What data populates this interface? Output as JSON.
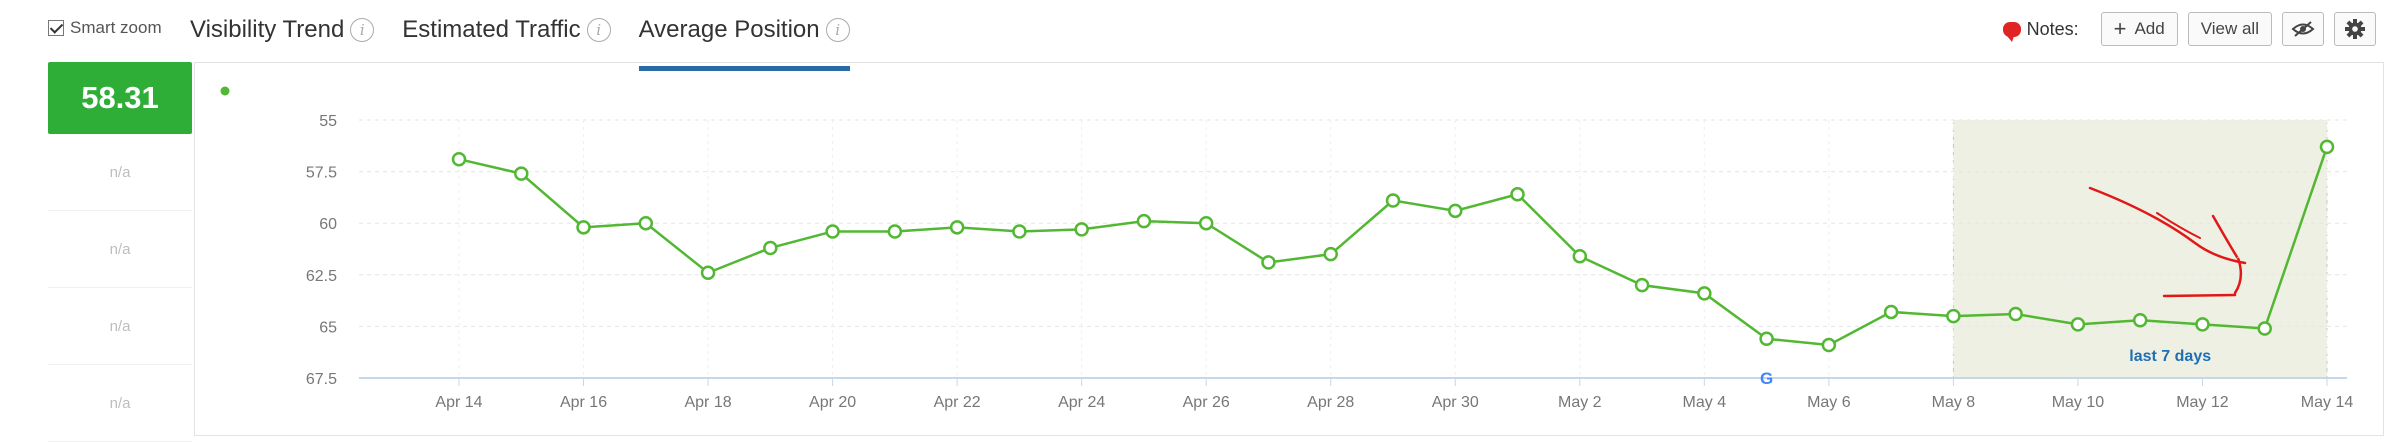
{
  "toolbar": {
    "smart_zoom_label": "Smart zoom",
    "tabs": [
      {
        "label": "Visibility Trend",
        "active": false
      },
      {
        "label": "Estimated Traffic",
        "active": false
      },
      {
        "label": "Average Position",
        "active": true
      }
    ],
    "notes_label": "Notes:",
    "add_label": "Add",
    "view_all_label": "View all"
  },
  "metrics": {
    "current": "58.31",
    "rows": [
      "n/a",
      "n/a",
      "n/a",
      "n/a"
    ]
  },
  "colors": {
    "series": "#52b833",
    "metric_bg": "#2fae37",
    "highlight_bg": "#eef0e3",
    "annotation_text": "#1f6fb4",
    "active_tab": "#2b6aa8",
    "scribble": "#e01818"
  },
  "chart_data": {
    "type": "line",
    "title": "",
    "xlabel": "",
    "ylabel": "",
    "y_inverted": true,
    "ylim": [
      55,
      67.5
    ],
    "yticks": [
      "55",
      "57.5",
      "60",
      "62.5",
      "65",
      "67.5"
    ],
    "ytick_values": [
      55,
      57.5,
      60,
      62.5,
      65,
      67.5
    ],
    "xticks": [
      "Apr 14",
      "Apr 16",
      "Apr 18",
      "Apr 20",
      "Apr 22",
      "Apr 24",
      "Apr 26",
      "Apr 28",
      "Apr 30",
      "May 2",
      "May 4",
      "May 6",
      "May 8",
      "May 10",
      "May 12",
      "May 14"
    ],
    "x_days": [
      0,
      2,
      4,
      6,
      8,
      10,
      12,
      14,
      16,
      18,
      20,
      22,
      24,
      26,
      28,
      30
    ],
    "grid": true,
    "series": [
      {
        "name": "",
        "x": [
          0,
          1,
          2,
          3,
          4,
          5,
          6,
          7,
          8,
          9,
          10,
          11,
          12,
          13,
          14,
          15,
          16,
          17,
          18,
          19,
          20,
          21,
          22,
          23,
          24,
          25,
          26,
          27,
          28,
          29,
          30
        ],
        "values": [
          56.9,
          57.6,
          60.2,
          60.0,
          62.4,
          61.2,
          60.4,
          60.4,
          60.2,
          60.4,
          60.3,
          59.9,
          60.0,
          61.9,
          61.5,
          58.9,
          59.4,
          58.6,
          61.6,
          63.0,
          63.4,
          65.6,
          65.9,
          64.3,
          64.5,
          64.4,
          64.9,
          64.7,
          64.9,
          65.1,
          56.3
        ]
      }
    ],
    "highlight": {
      "x_from": 24,
      "x_to": 30,
      "label": "last 7 days"
    },
    "marker": {
      "x": 21,
      "icon": "google-icon",
      "text": "G"
    }
  }
}
